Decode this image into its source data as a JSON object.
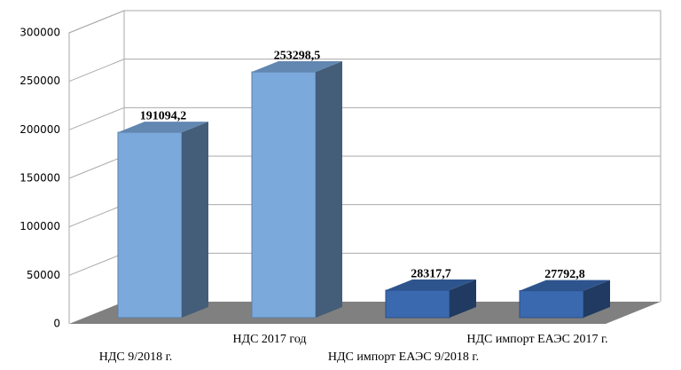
{
  "chart_data": {
    "type": "bar3d",
    "categories": [
      "НДС 9/2018 г.",
      "НДС 2017 год",
      "НДС импорт ЕАЭС 9/2018 г.",
      "НДС импорт ЕАЭС 2017 г."
    ],
    "values": [
      191094.2,
      253298.5,
      28317.7,
      27792.8
    ],
    "value_labels": [
      "191094,2",
      "253298,5",
      "28317,7",
      "27792,8"
    ],
    "colors": [
      "#7ba9dc",
      "#7ba9dc",
      "#3a69b0",
      "#3a69b0"
    ],
    "ylim": [
      0,
      300000
    ],
    "yticks": [
      0,
      50000,
      100000,
      150000,
      200000,
      250000,
      300000
    ],
    "grid": true
  }
}
